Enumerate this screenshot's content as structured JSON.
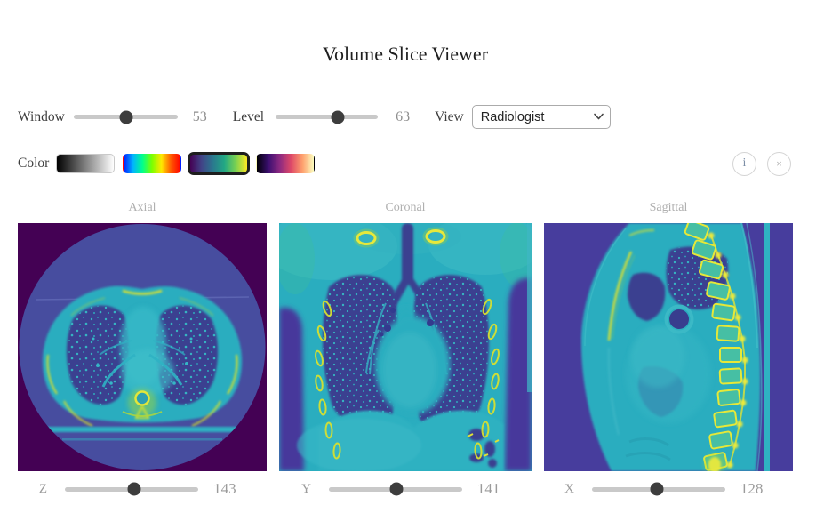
{
  "title": "Volume Slice Viewer",
  "controls": {
    "window": {
      "label": "Window",
      "value": "53",
      "percent": 51
    },
    "level": {
      "label": "Level",
      "value": "63",
      "percent": 61
    },
    "view": {
      "label": "View",
      "selected": "Radiologist"
    },
    "color": {
      "label": "Color",
      "selected": "viridis",
      "swatches": [
        {
          "name": "grayscale-colormap"
        },
        {
          "name": "jet-colormap"
        },
        {
          "name": "viridis-colormap"
        },
        {
          "name": "magma-colormap"
        }
      ]
    },
    "info_button": "i",
    "close_button": "×"
  },
  "views": [
    {
      "label": "Axial",
      "axis": "Z",
      "value": "143",
      "percent": 52
    },
    {
      "label": "Coronal",
      "axis": "Y",
      "value": "141",
      "percent": 51
    },
    {
      "label": "Sagittal",
      "axis": "X",
      "value": "128",
      "percent": 49
    }
  ],
  "colors": {
    "background_dark_purple": "#440154",
    "scan_field_blue": "#474d9f",
    "lung_blue": "#3a3f90",
    "tissue_cyan": "#2aadbf",
    "bone_yellow": "#e6e83c",
    "slider_track": "#c9c9c9",
    "slider_thumb": "#3d3d3d",
    "title_color": "#1f1f1f"
  }
}
